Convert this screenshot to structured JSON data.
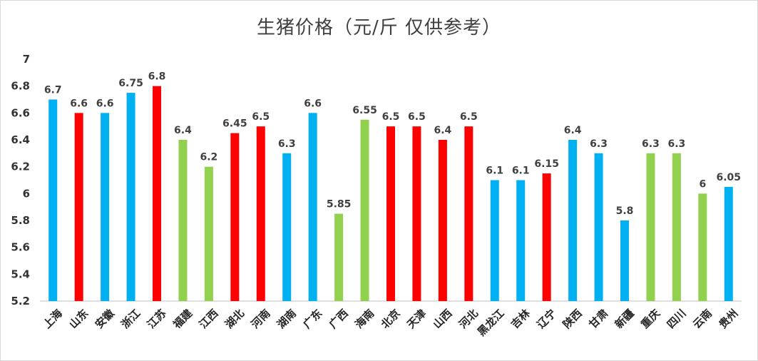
{
  "chart_data": {
    "type": "bar",
    "title": "生猪价格（元/斤 仅供参考）",
    "xlabel": "",
    "ylabel": "",
    "ylim": [
      5.2,
      7
    ],
    "yticks": [
      "5.2",
      "5.4",
      "5.6",
      "5.8",
      "6",
      "6.2",
      "6.4",
      "6.6",
      "6.8",
      "7"
    ],
    "grid": false,
    "legend": "none",
    "categories": [
      "上海",
      "山东",
      "安徽",
      "浙江",
      "江苏",
      "福建",
      "江西",
      "湖北",
      "河南",
      "湖南",
      "广东",
      "广西",
      "海南",
      "北京",
      "天津",
      "山西",
      "河北",
      "黑龙江",
      "吉林",
      "辽宁",
      "陕西",
      "甘肃",
      "新疆",
      "重庆",
      "四川",
      "云南",
      "贵州"
    ],
    "values": [
      6.7,
      6.6,
      6.6,
      6.75,
      6.8,
      6.4,
      6.2,
      6.45,
      6.5,
      6.3,
      6.6,
      5.85,
      6.55,
      6.5,
      6.5,
      6.4,
      6.5,
      6.1,
      6.1,
      6.15,
      6.4,
      6.3,
      5.8,
      6.3,
      6.3,
      6,
      6.05
    ],
    "value_labels": [
      "6.7",
      "6.6",
      "6.6",
      "6.75",
      "6.8",
      "6.4",
      "6.2",
      "6.45",
      "6.5",
      "6.3",
      "6.6",
      "5.85",
      "6.55",
      "6.5",
      "6.5",
      "6.4",
      "6.5",
      "6.1",
      "6.1",
      "6.15",
      "6.4",
      "6.3",
      "5.8",
      "6.3",
      "6.3",
      "6",
      "6.05"
    ],
    "bar_colors": [
      "#00b0f0",
      "#ff0000",
      "#00b0f0",
      "#00b0f0",
      "#ff0000",
      "#92d050",
      "#92d050",
      "#ff0000",
      "#ff0000",
      "#00b0f0",
      "#00b0f0",
      "#92d050",
      "#92d050",
      "#ff0000",
      "#ff0000",
      "#ff0000",
      "#ff0000",
      "#00b0f0",
      "#00b0f0",
      "#ff0000",
      "#00b0f0",
      "#00b0f0",
      "#00b0f0",
      "#92d050",
      "#92d050",
      "#92d050",
      "#00b0f0"
    ]
  }
}
